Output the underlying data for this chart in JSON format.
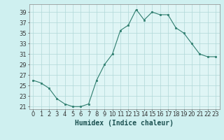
{
  "x": [
    0,
    1,
    2,
    3,
    4,
    5,
    6,
    7,
    8,
    9,
    10,
    11,
    12,
    13,
    14,
    15,
    16,
    17,
    18,
    19,
    20,
    21,
    22,
    23
  ],
  "y": [
    26,
    25.5,
    24.5,
    22.5,
    21.5,
    21,
    21,
    21.5,
    26,
    29,
    31,
    35.5,
    36.5,
    39.5,
    37.5,
    39,
    38.5,
    38.5,
    36,
    35,
    33,
    31,
    30.5,
    30.5
  ],
  "line_color": "#2e7d6e",
  "marker_color": "#2e7d6e",
  "bg_color": "#cff0f0",
  "grid_color": "#b0d8d8",
  "xlabel": "Humidex (Indice chaleur)",
  "yticks": [
    21,
    23,
    25,
    27,
    29,
    31,
    33,
    35,
    37,
    39
  ],
  "xticks": [
    0,
    1,
    2,
    3,
    4,
    5,
    6,
    7,
    8,
    9,
    10,
    11,
    12,
    13,
    14,
    15,
    16,
    17,
    18,
    19,
    20,
    21,
    22,
    23
  ],
  "ylim": [
    20.5,
    40.5
  ],
  "xlim": [
    -0.5,
    23.5
  ],
  "xlabel_fontsize": 7,
  "tick_fontsize": 6,
  "axis_bg_color": "#dff5f5"
}
